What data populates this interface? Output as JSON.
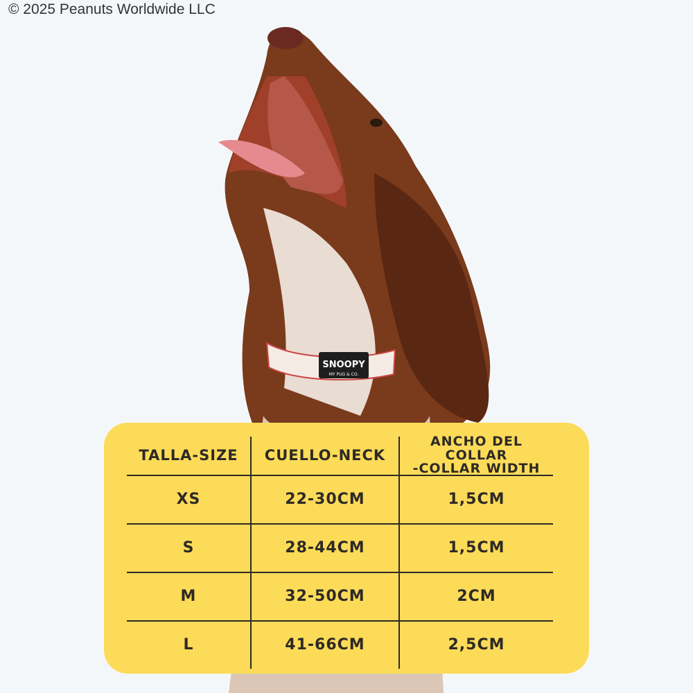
{
  "copyright": "© 2025 Peanuts Worldwide LLC",
  "collar_logo": {
    "brand": "SNOOPY",
    "sub": "MY PUG & CO."
  },
  "colors": {
    "table_bg": "#fcdb58",
    "text": "#2d2a26",
    "background": "#f4f7fa"
  },
  "size_table": {
    "headers": [
      "TALLA-SIZE",
      "CUELLO-NECK",
      "ANCHO DEL COLLAR",
      "-COLLAR WIDTH"
    ],
    "rows": [
      {
        "size": "XS",
        "neck": "22-30CM",
        "width": "1,5CM"
      },
      {
        "size": "S",
        "neck": "28-44CM",
        "width": "1,5CM"
      },
      {
        "size": "M",
        "neck": "32-50CM",
        "width": "2CM"
      },
      {
        "size": "L",
        "neck": "41-66CM",
        "width": "2,5CM"
      }
    ]
  }
}
